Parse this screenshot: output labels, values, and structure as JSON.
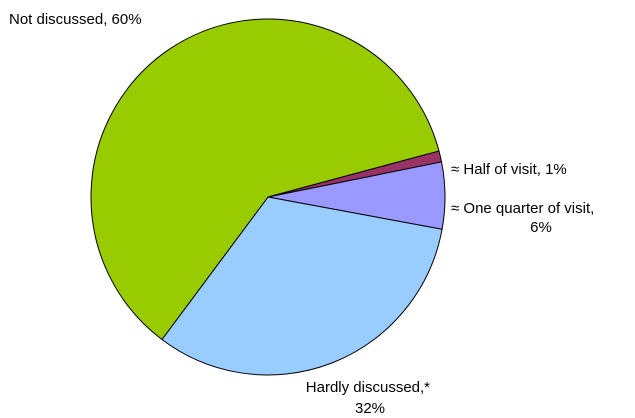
{
  "chart_data": {
    "type": "pie",
    "slices": [
      {
        "label": "Half of visit",
        "value": 1,
        "label_lines": [
          "≈ Half of visit, 1%"
        ],
        "color": "#993366"
      },
      {
        "label": "One quarter of visit",
        "value": 6,
        "label_lines": [
          "≈ One quarter of visit,",
          "6%"
        ],
        "color": "#9999ff"
      },
      {
        "label": "Hardly discussed",
        "value": 32,
        "label_lines": [
          "Hardly discussed,*",
          "32%"
        ],
        "color": "#99ccff"
      },
      {
        "label": "Not discussed",
        "value": 60,
        "label_lines": [
          "Not discussed, 60%"
        ],
        "color": "#99cc00"
      }
    ],
    "start_angle_deg": -15,
    "direction": "clockwise",
    "legend": "none",
    "label_placement": "outside"
  }
}
